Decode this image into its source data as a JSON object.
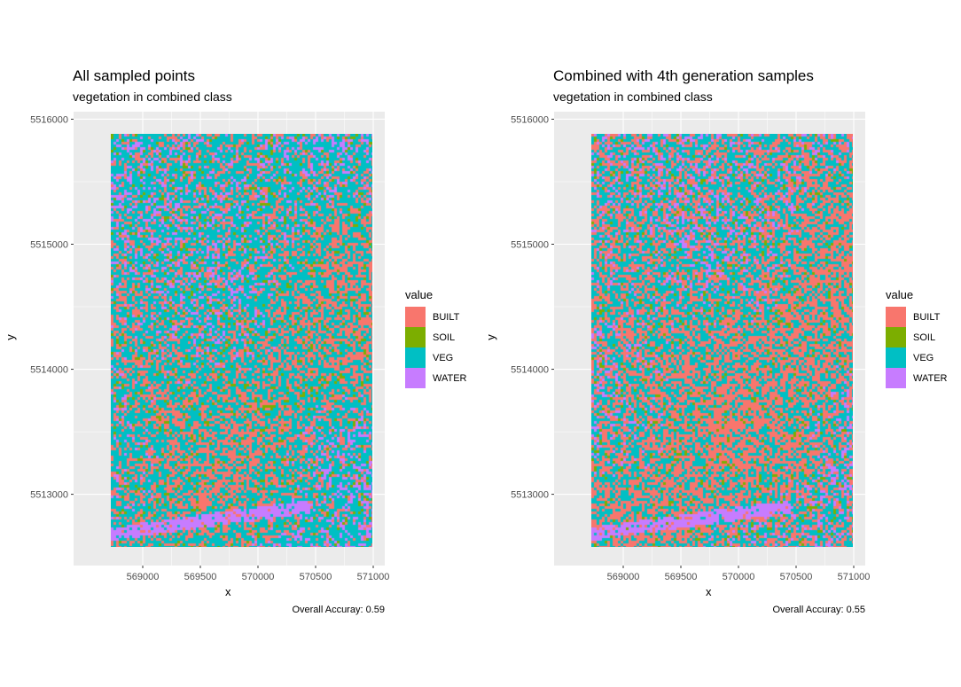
{
  "chart_data": [
    {
      "type": "heatmap",
      "title": "All sampled points",
      "subtitle": "vegetation in combined class",
      "xlabel": "x",
      "ylabel": "y",
      "caption": "Overall Accuray: 0.59",
      "xlim": [
        568400,
        571100
      ],
      "ylim": [
        5512430,
        5516060
      ],
      "extent": {
        "x": [
          568720,
          570990
        ],
        "y": [
          5512580,
          5515880
        ]
      },
      "x_ticks": [
        569000,
        569500,
        570000,
        570500,
        571000
      ],
      "y_ticks": [
        5513000,
        5514000,
        5515000,
        5516000
      ],
      "legend": {
        "title": "value",
        "position": "right",
        "entries": [
          "BUILT",
          "SOIL",
          "VEG",
          "WATER"
        ]
      },
      "class_fractions": {
        "BUILT": 0.3,
        "SOIL": 0.06,
        "VEG": 0.56,
        "WATER": 0.08
      },
      "seed": 11,
      "grid": true
    },
    {
      "type": "heatmap",
      "title": "Combined with 4th generation samples",
      "subtitle": "vegetation in combined class",
      "xlabel": "x",
      "ylabel": "y",
      "caption": "Overall Accuray: 0.55",
      "xlim": [
        568400,
        571100
      ],
      "ylim": [
        5512430,
        5516060
      ],
      "extent": {
        "x": [
          568720,
          570990
        ],
        "y": [
          5512580,
          5515880
        ]
      },
      "x_ticks": [
        569000,
        569500,
        570000,
        570500,
        571000
      ],
      "y_ticks": [
        5513000,
        5514000,
        5515000,
        5516000
      ],
      "legend": {
        "title": "value",
        "position": "right",
        "entries": [
          "BUILT",
          "SOIL",
          "VEG",
          "WATER"
        ]
      },
      "class_fractions": {
        "BUILT": 0.42,
        "SOIL": 0.05,
        "VEG": 0.46,
        "WATER": 0.07
      },
      "seed": 29,
      "grid": true
    }
  ],
  "colors": {
    "BUILT": "#F8766D",
    "SOIL": "#7CAE00",
    "VEG": "#00BFC4",
    "WATER": "#C77CFF",
    "panel_background": "#EBEBEB",
    "grid": "#FFFFFF",
    "axis_text": "#4D4D4D"
  }
}
